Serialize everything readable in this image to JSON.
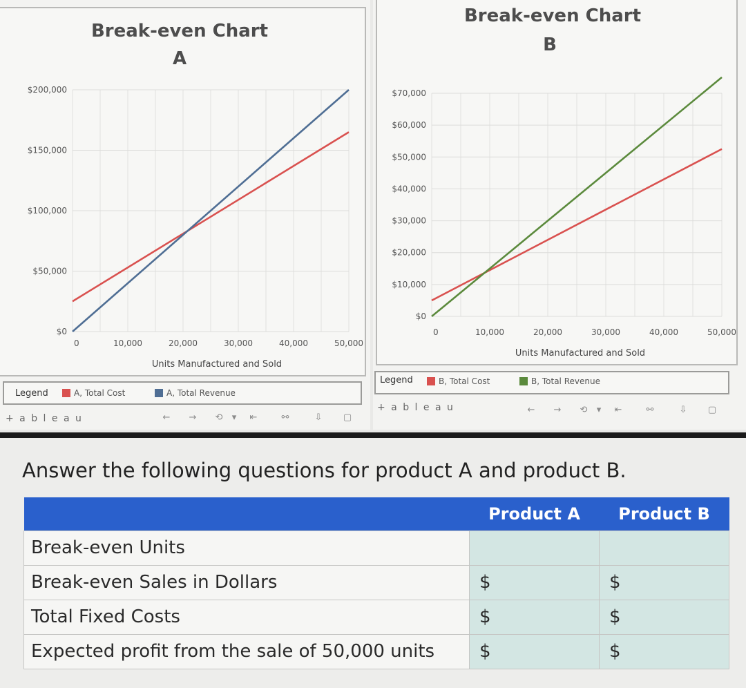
{
  "chart_data": [
    {
      "type": "line",
      "title": "Break-even Chart",
      "subtitle": "A",
      "xlabel": "Units Manufactured and Sold",
      "x_ticks": [
        "0",
        "10,000",
        "20,000",
        "30,000",
        "40,000",
        "50,000"
      ],
      "y_ticks": [
        "$0",
        "$50,000",
        "$100,000",
        "$150,000",
        "$200,000"
      ],
      "xlim": [
        0,
        50000
      ],
      "ylim": [
        0,
        200000
      ],
      "series": [
        {
          "name": "A, Total Cost",
          "color": "#d9514f",
          "x": [
            0,
            50000
          ],
          "y": [
            25000,
            165000
          ]
        },
        {
          "name": "A, Total Revenue",
          "color": "#4f6e94",
          "x": [
            0,
            50000
          ],
          "y": [
            0,
            200000
          ]
        }
      ],
      "legend_title": "Legend",
      "grid": true
    },
    {
      "type": "line",
      "title": "Break-even Chart",
      "subtitle": "B",
      "xlabel": "Units Manufactured and Sold",
      "x_ticks": [
        "0",
        "10,000",
        "20,000",
        "30,000",
        "40,000",
        "50,000"
      ],
      "y_ticks": [
        "$0",
        "$10,000",
        "$20,000",
        "$30,000",
        "$40,000",
        "$50,000",
        "$60,000",
        "$70,000"
      ],
      "xlim": [
        0,
        50000
      ],
      "ylim": [
        0,
        70000
      ],
      "series": [
        {
          "name": "B, Total Cost",
          "color": "#d9514f",
          "x": [
            0,
            50000
          ],
          "y": [
            5000,
            52500
          ]
        },
        {
          "name": "B, Total Revenue",
          "color": "#5b8a3c",
          "x": [
            0,
            50000
          ],
          "y": [
            0,
            75000
          ]
        }
      ],
      "legend_title": "Legend",
      "grid": true
    }
  ],
  "toolbar": {
    "brand": "+ a b l e a u",
    "icons": [
      "undo-arrow",
      "redo-arrow",
      "revert",
      "reset",
      "share",
      "download",
      "fullscreen"
    ]
  },
  "question": {
    "text": "Answer the following questions for product A and product B.",
    "columns": [
      "",
      "Product A",
      "Product B"
    ],
    "rows": [
      {
        "label": "Break-even Units",
        "a": "",
        "b": ""
      },
      {
        "label": "Break-even Sales in Dollars",
        "a": "$",
        "b": "$"
      },
      {
        "label": "Total Fixed Costs",
        "a": "$",
        "b": "$"
      },
      {
        "label": "Expected profit from the sale of 50,000 units",
        "a": "$",
        "b": "$"
      }
    ]
  }
}
